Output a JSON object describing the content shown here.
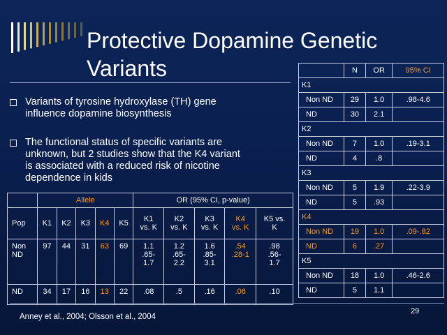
{
  "slide": {
    "title": "Protective Dopamine Genetic Variants",
    "bullets": [
      "Variants of tyrosine hydroxylase (TH) gene\ninfluence dopamine biosynthesis",
      "The functional status of specific variants are\nunknown, but 2 studies show that the K4 variant\nis associated with a reduced risk of nicotine\ndependence in kids"
    ],
    "citation": "Anney et al., 2004; Olsson et al., 2004",
    "page_number": "29",
    "accent_color": "#ff9a1f"
  },
  "left_table": {
    "group_headers": {
      "allele": "Allele",
      "or": "OR (95% CI, p-value)"
    },
    "col_headers": [
      "Pop",
      "K1",
      "K2",
      "K3",
      "K4",
      "K5",
      "K1\nvs. K",
      "K2\nvs. K",
      "K3\nvs. K",
      "K4\nvs. K",
      "K5 vs.\nK"
    ],
    "rows": [
      {
        "pop": "Non\nND",
        "cells": [
          "97",
          "44",
          "31",
          "63",
          "69",
          "1.1\n.65-\n1.7",
          "1.2\n.65-\n2.2",
          "1.6\n.85-\n3.1",
          ".54\n.28-1",
          ".98\n.56-\n1.7"
        ]
      },
      {
        "pop": "ND",
        "cells": [
          "34",
          "17",
          "16",
          "13",
          "22",
          ".08",
          ".5",
          ".16",
          ".06",
          ".10"
        ]
      }
    ]
  },
  "right_table": {
    "headers": [
      "N",
      "OR",
      "95% CI"
    ],
    "groups": [
      {
        "name": "K1",
        "rows": [
          {
            "label": "Non ND",
            "n": "29",
            "or": "1.0",
            "ci": ".98-4.6"
          },
          {
            "label": "ND",
            "n": "30",
            "or": "2.1",
            "ci": ""
          }
        ]
      },
      {
        "name": "K2",
        "rows": [
          {
            "label": "Non ND",
            "n": "7",
            "or": "1.0",
            "ci": ".19-3.1"
          },
          {
            "label": "ND",
            "n": "4",
            "or": ".8",
            "ci": ""
          }
        ]
      },
      {
        "name": "K3",
        "rows": [
          {
            "label": "Non ND",
            "n": "5",
            "or": "1.9",
            "ci": ".22-3.9"
          },
          {
            "label": "ND",
            "n": "5",
            "or": ".93",
            "ci": ""
          }
        ]
      },
      {
        "name": "K4",
        "rows": [
          {
            "label": "Non ND",
            "n": "19",
            "or": "1.0",
            "ci": ".09-.82"
          },
          {
            "label": "ND",
            "n": "6",
            "or": ".27",
            "ci": ""
          }
        ]
      },
      {
        "name": "K5",
        "rows": [
          {
            "label": "Non ND",
            "n": "18",
            "or": "1.0",
            "ci": ".46-2.6"
          },
          {
            "label": "ND",
            "n": "5",
            "or": "1.1",
            "ci": ""
          }
        ]
      }
    ]
  }
}
